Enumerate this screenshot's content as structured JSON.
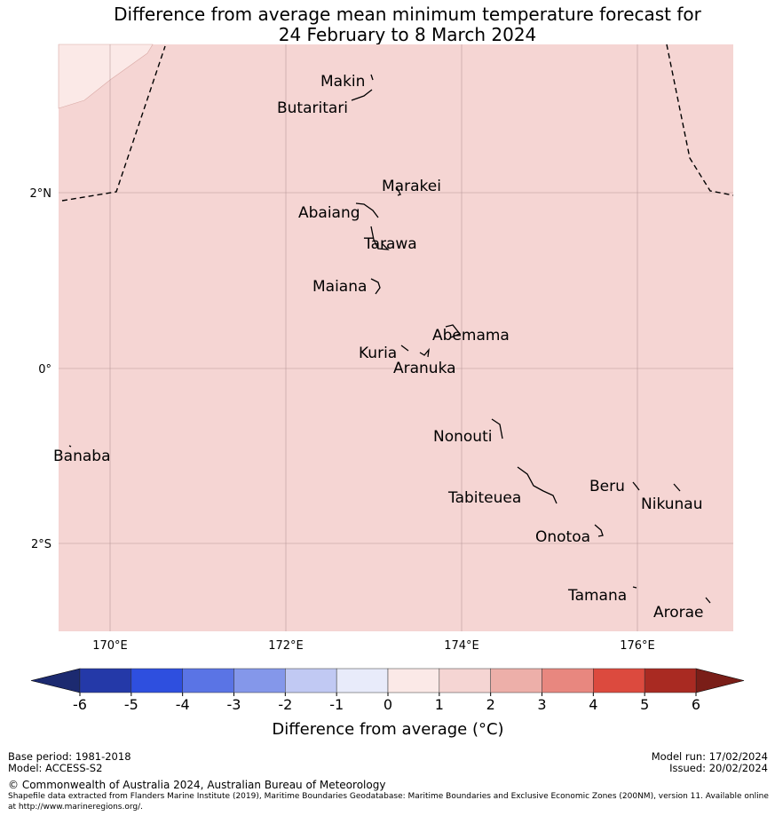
{
  "title": {
    "line1": "Difference from average mean minimum temperature forecast for",
    "line2": "24 February to 8 March 2024"
  },
  "map": {
    "background_color": "#f5d5d3",
    "light_region_color": "#fbe9e7",
    "lon_labels": [
      "170°E",
      "172°E",
      "174°E",
      "176°E"
    ],
    "lat_labels": [
      "2°N",
      "0°",
      "2°S"
    ],
    "islands": [
      "Makin",
      "Butaritari",
      "Marakei",
      "Abaiang",
      "Tarawa",
      "Maiana",
      "Abemama",
      "Kuria",
      "Aranuka",
      "Nonouti",
      "Banaba",
      "Beru",
      "Nikunau",
      "Tabiteuea",
      "Onotoa",
      "Tamana",
      "Arorae"
    ]
  },
  "colorbar": {
    "ticks": [
      "-6",
      "-5",
      "-4",
      "-3",
      "-2",
      "-1",
      "0",
      "1",
      "2",
      "3",
      "4",
      "5",
      "6"
    ],
    "colors": [
      "#2439a8",
      "#2e4fdf",
      "#5a74e5",
      "#8497ea",
      "#c1c9f3",
      "#e8ebfa",
      "#fbe9e7",
      "#f5d5d3",
      "#edafa9",
      "#e8877f",
      "#dc4a3e",
      "#a92a22"
    ],
    "low_extend_color": "#1c2a70",
    "high_extend_color": "#7a1e18",
    "label": "Difference from average (°C)"
  },
  "footer": {
    "base_period": "Base period: 1981-2018",
    "model": "Model: ACCESS-S2",
    "model_run": "Model run: 17/02/2024",
    "issued": "Issued: 20/02/2024",
    "copyright": "© Commonwealth of Australia 2024, Australian Bureau of Meteorology",
    "shapefile_note": "Shapefile data extracted from Flanders Marine Institute (2019), Maritime Boundaries Geodatabase: Maritime Boundaries and Exclusive Economic Zones (200NM), version 11. Available online at http://www.marineregions.org/."
  }
}
